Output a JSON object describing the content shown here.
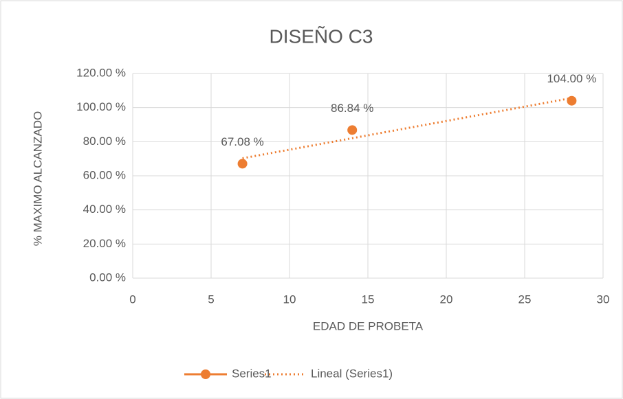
{
  "chart_data": {
    "type": "scatter",
    "title": "DISEÑO C3",
    "xlabel": "EDAD DE PROBETA",
    "ylabel": "% MAXIMO ALCANZADO",
    "series": [
      {
        "name": "Series1",
        "color": "#ed7d31",
        "x": [
          7,
          14,
          28
        ],
        "values": [
          67.08,
          86.84,
          104.0
        ],
        "value_labels": [
          "67.08 %",
          "86.84 %",
          "104.00 %"
        ]
      }
    ],
    "trendline": {
      "name": "Lineal (Series1)",
      "color": "#ed7d31",
      "kind": "linear"
    },
    "xlim": [
      0,
      30
    ],
    "xticks": [
      0,
      5,
      10,
      15,
      20,
      25,
      30
    ],
    "ylim": [
      0,
      120
    ],
    "yticks": [
      {
        "value": 0,
        "label": "0.00 %"
      },
      {
        "value": 20,
        "label": "20.00 %"
      },
      {
        "value": 40,
        "label": "40.00 %"
      },
      {
        "value": 60,
        "label": "60.00 %"
      },
      {
        "value": 80,
        "label": "80.00 %"
      },
      {
        "value": 100,
        "label": "100.00 %"
      },
      {
        "value": 120,
        "label": "120.00 %"
      }
    ],
    "grid": true,
    "legend": "bottom"
  }
}
